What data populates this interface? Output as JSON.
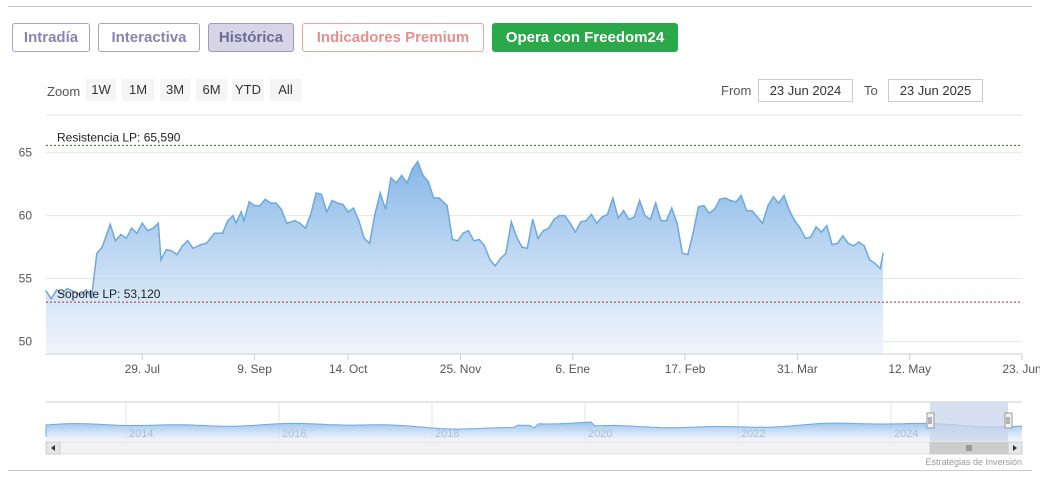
{
  "tabs": [
    {
      "label": "Intradía"
    },
    {
      "label": "Interactiva"
    },
    {
      "label": "Histórica"
    },
    {
      "label": "Indicadores Premium"
    },
    {
      "label": "Opera con Freedom24"
    }
  ],
  "zoom": {
    "label": "Zoom",
    "buttons": [
      "1W",
      "1M",
      "3M",
      "6M",
      "YTD",
      "All"
    ]
  },
  "range": {
    "from_label": "From",
    "from_value": "23 Jun 2024",
    "to_label": "To",
    "to_value": "23 Jun 2025"
  },
  "credits": "Estrategias de Inversión",
  "colors": {
    "line": "#6fa8dc",
    "area_top": "#7fb2e5",
    "resistance": "#2e6b2e",
    "support": "#b03030",
    "navigator_mask": "#c9d6ec"
  },
  "chart_data": {
    "type": "area",
    "title": "",
    "xlabel": "",
    "ylabel": "",
    "ylim": [
      49,
      68
    ],
    "y_ticks": [
      50,
      55,
      60,
      65
    ],
    "x_ticks": [
      {
        "label": "29. Jul",
        "t": 36
      },
      {
        "label": "9. Sep",
        "t": 78
      },
      {
        "label": "14. Oct",
        "t": 113
      },
      {
        "label": "25. Nov",
        "t": 155
      },
      {
        "label": "6. Ene",
        "t": 197
      },
      {
        "label": "17. Feb",
        "t": 239
      },
      {
        "label": "31. Mar",
        "t": 281
      },
      {
        "label": "12. May",
        "t": 323
      },
      {
        "label": "23. Jun",
        "t": 365
      }
    ],
    "x_range_days": [
      0,
      365
    ],
    "series": [
      {
        "values": [
          [
            0,
            54.0
          ],
          [
            2,
            53.4
          ],
          [
            4,
            54.1
          ],
          [
            6,
            53.8
          ],
          [
            8,
            54.2
          ],
          [
            10,
            54.0
          ],
          [
            13,
            53.7
          ],
          [
            15,
            54.1
          ],
          [
            17,
            53.5
          ],
          [
            19,
            57.0
          ],
          [
            21,
            57.5
          ],
          [
            24,
            59.3
          ],
          [
            26,
            58.0
          ],
          [
            28,
            58.5
          ],
          [
            30,
            58.2
          ],
          [
            32,
            59.0
          ],
          [
            34,
            58.6
          ],
          [
            36,
            59.4
          ],
          [
            38,
            58.8
          ],
          [
            40,
            59.0
          ],
          [
            42,
            59.4
          ],
          [
            43,
            56.5
          ],
          [
            45,
            57.3
          ],
          [
            47,
            57.2
          ],
          [
            49,
            56.9
          ],
          [
            51,
            57.6
          ],
          [
            53,
            58.0
          ],
          [
            55,
            57.4
          ],
          [
            58,
            57.7
          ],
          [
            60,
            57.8
          ],
          [
            63,
            58.6
          ],
          [
            66,
            58.6
          ],
          [
            68,
            59.6
          ],
          [
            70,
            60.0
          ],
          [
            71,
            59.4
          ],
          [
            73,
            60.3
          ],
          [
            74,
            59.6
          ],
          [
            76,
            61.1
          ],
          [
            78,
            60.8
          ],
          [
            80,
            60.8
          ],
          [
            82,
            61.3
          ],
          [
            84,
            61.0
          ],
          [
            86,
            61.0
          ],
          [
            88,
            60.5
          ],
          [
            90,
            59.4
          ],
          [
            93,
            59.6
          ],
          [
            95,
            59.4
          ],
          [
            97,
            59.0
          ],
          [
            99,
            60.1
          ],
          [
            101,
            61.8
          ],
          [
            103,
            61.7
          ],
          [
            105,
            60.3
          ],
          [
            107,
            61.2
          ],
          [
            109,
            61.0
          ],
          [
            111,
            60.9
          ],
          [
            113,
            60.3
          ],
          [
            115,
            60.6
          ],
          [
            117,
            59.6
          ],
          [
            119,
            58.2
          ],
          [
            121,
            57.8
          ],
          [
            123,
            60.1
          ],
          [
            125,
            61.8
          ],
          [
            127,
            60.5
          ],
          [
            129,
            63.0
          ],
          [
            131,
            62.6
          ],
          [
            133,
            63.2
          ],
          [
            135,
            62.6
          ],
          [
            137,
            63.7
          ],
          [
            139,
            64.3
          ],
          [
            141,
            63.2
          ],
          [
            143,
            62.7
          ],
          [
            145,
            61.4
          ],
          [
            147,
            61.4
          ],
          [
            149,
            61.0
          ],
          [
            150,
            60.8
          ],
          [
            152,
            58.1
          ],
          [
            154,
            58.0
          ],
          [
            156,
            58.6
          ],
          [
            158,
            58.8
          ],
          [
            160,
            58.0
          ],
          [
            162,
            58.1
          ],
          [
            164,
            57.6
          ],
          [
            166,
            56.5
          ],
          [
            168,
            56.0
          ],
          [
            170,
            56.6
          ],
          [
            172,
            57.0
          ],
          [
            174,
            59.5
          ],
          [
            176,
            58.3
          ],
          [
            178,
            57.5
          ],
          [
            180,
            57.4
          ],
          [
            182,
            59.7
          ],
          [
            184,
            58.2
          ],
          [
            186,
            58.8
          ],
          [
            188,
            59.0
          ],
          [
            190,
            59.7
          ],
          [
            192,
            60.0
          ],
          [
            194,
            60.0
          ],
          [
            196,
            59.4
          ],
          [
            198,
            58.7
          ],
          [
            200,
            59.5
          ],
          [
            202,
            59.6
          ],
          [
            204,
            60.1
          ],
          [
            206,
            59.4
          ],
          [
            208,
            59.9
          ],
          [
            210,
            60.1
          ],
          [
            212,
            61.4
          ],
          [
            214,
            59.8
          ],
          [
            216,
            60.4
          ],
          [
            218,
            59.7
          ],
          [
            220,
            59.9
          ],
          [
            222,
            61.2
          ],
          [
            224,
            60.0
          ],
          [
            226,
            59.7
          ],
          [
            228,
            61.0
          ],
          [
            230,
            59.6
          ],
          [
            232,
            59.6
          ],
          [
            234,
            60.6
          ],
          [
            236,
            59.4
          ],
          [
            238,
            57.0
          ],
          [
            240,
            56.9
          ],
          [
            242,
            58.6
          ],
          [
            244,
            60.7
          ],
          [
            246,
            60.8
          ],
          [
            248,
            60.2
          ],
          [
            250,
            60.5
          ],
          [
            252,
            61.3
          ],
          [
            254,
            61.4
          ],
          [
            256,
            61.2
          ],
          [
            258,
            61.1
          ],
          [
            260,
            61.6
          ],
          [
            262,
            60.4
          ],
          [
            264,
            60.4
          ],
          [
            266,
            59.9
          ],
          [
            268,
            59.4
          ],
          [
            270,
            60.8
          ],
          [
            272,
            61.5
          ],
          [
            274,
            61.0
          ],
          [
            276,
            61.6
          ],
          [
            278,
            60.4
          ],
          [
            280,
            59.6
          ],
          [
            282,
            59.0
          ],
          [
            284,
            58.2
          ],
          [
            286,
            58.3
          ],
          [
            288,
            59.1
          ],
          [
            290,
            58.7
          ],
          [
            292,
            59.2
          ],
          [
            294,
            57.7
          ],
          [
            296,
            57.8
          ],
          [
            298,
            58.4
          ],
          [
            300,
            57.8
          ],
          [
            302,
            57.6
          ],
          [
            304,
            57.9
          ],
          [
            306,
            57.6
          ],
          [
            308,
            56.5
          ],
          [
            310,
            56.2
          ],
          [
            312,
            55.8
          ],
          [
            313,
            57.0
          ]
        ]
      }
    ],
    "annotations": [
      {
        "label": "Resistencia LP: 65,590",
        "value": 65.59
      },
      {
        "label": "Soporte LP: 53,120",
        "value": 53.12
      }
    ],
    "navigator": {
      "x_labels": [
        "2014",
        "2016",
        "2018",
        "2020",
        "2022",
        "2024"
      ],
      "selected_fraction": [
        0.9,
        1.0
      ]
    },
    "grid": true,
    "legend": "none"
  }
}
